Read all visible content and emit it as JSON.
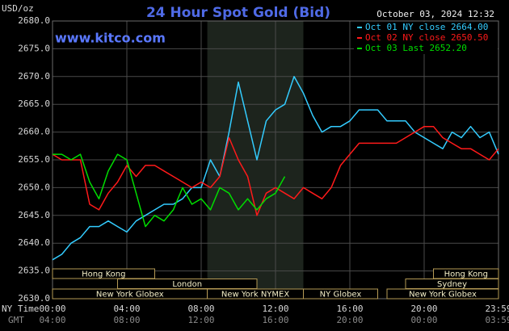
{
  "chart_data": {
    "type": "line",
    "unit_label": "USD/oz",
    "title": "24 Hour Spot Gold (Bid)",
    "timestamp": "October 03, 2024 12:32",
    "watermark": "www.kitco.com",
    "x_row_labels": [
      "NY Time",
      "GMT"
    ],
    "x": [
      0,
      0.5,
      1,
      1.5,
      2,
      2.5,
      3,
      3.5,
      4,
      4.5,
      5,
      5.5,
      6,
      6.5,
      7,
      7.5,
      8,
      8.5,
      9,
      9.5,
      10,
      10.5,
      11,
      11.5,
      12,
      12.5,
      13,
      13.5,
      14,
      14.5,
      15,
      15.5,
      16,
      16.5,
      17,
      17.5,
      18,
      18.5,
      19,
      19.5,
      20,
      20.5,
      21,
      21.5,
      22,
      22.5,
      23,
      23.5,
      24
    ],
    "xlim": [
      0,
      24
    ],
    "xticks": [
      {
        "value": 0,
        "label": "00:00"
      },
      {
        "value": 4,
        "label": "04:00"
      },
      {
        "value": 8,
        "label": "08:00"
      },
      {
        "value": 12,
        "label": "12:00"
      },
      {
        "value": 16,
        "label": "16:00"
      },
      {
        "value": 20,
        "label": "20:00"
      },
      {
        "value": 24,
        "label": "23:59"
      }
    ],
    "gmt_labels": [
      "04:00",
      "08:00",
      "12:00",
      "16:00",
      "20:00",
      "00:00",
      "03:59"
    ],
    "ylim": [
      2630,
      2680
    ],
    "yticks": [
      {
        "value": 2630,
        "label": "2630.0"
      },
      {
        "value": 2635,
        "label": "2635.0"
      },
      {
        "value": 2640,
        "label": "2640.0"
      },
      {
        "value": 2645,
        "label": "2645.0"
      },
      {
        "value": 2650,
        "label": "2650.0"
      },
      {
        "value": 2655,
        "label": "2655.0"
      },
      {
        "value": 2660,
        "label": "2660.0"
      },
      {
        "value": 2665,
        "label": "2665.0"
      },
      {
        "value": 2670,
        "label": "2670.0"
      },
      {
        "value": 2675,
        "label": "2675.0"
      },
      {
        "value": 2680,
        "label": "2680.0"
      }
    ],
    "grid": true,
    "shaded_range": [
      8.33,
      13.5
    ],
    "legend": "top-right",
    "series": [
      {
        "name": "Oct 01 NY close 2664.00",
        "color": "#33ccff",
        "values": [
          2637,
          2638,
          2640,
          2641,
          2643,
          2643,
          2644,
          2643,
          2642,
          2644,
          2645,
          2646,
          2647,
          2647,
          2648,
          2650,
          2650,
          2655,
          2652,
          2660,
          2669,
          2662,
          2655,
          2662,
          2664,
          2665,
          2670,
          2667,
          2663,
          2660,
          2661,
          2661,
          2662,
          2664,
          2664,
          2664,
          2662,
          2662,
          2662,
          2660,
          2659,
          2658,
          2657,
          2660,
          2659,
          2661,
          2659,
          2660,
          2656
        ]
      },
      {
        "name": "Oct 02 NY close 2650.50",
        "color": "#ff1a1a",
        "values": [
          2656,
          2655,
          2655,
          2655,
          2647,
          2646,
          2649,
          2651,
          2654,
          2652,
          2654,
          2654,
          2653,
          2652,
          2651,
          2650,
          2651,
          2650,
          2652,
          2659,
          2655,
          2652,
          2645,
          2649,
          2650,
          2649,
          2648,
          2650,
          2649,
          2648,
          2650,
          2654,
          2656,
          2658,
          2658,
          2658,
          2658,
          2658,
          2659,
          2660,
          2661,
          2661,
          2659,
          2658,
          2657,
          2657,
          2656,
          2655,
          2657
        ]
      },
      {
        "name": "Oct 03 Last 2652.20",
        "color": "#00dd00",
        "values": [
          2656,
          2656,
          2655,
          2656,
          2651,
          2648,
          2653,
          2656,
          2655,
          2649,
          2643,
          2645,
          2644,
          2646,
          2650,
          2647,
          2648,
          2646,
          2650,
          2649,
          2646,
          2648,
          2646,
          2648,
          2649,
          2652,
          null,
          null,
          null,
          null,
          null,
          null,
          null,
          null,
          null,
          null,
          null,
          null,
          null,
          null,
          null,
          null,
          null,
          null,
          null,
          null,
          null,
          null,
          null
        ]
      }
    ],
    "sessions": [
      {
        "label": "Hong Kong",
        "start": 0,
        "end": 5.5,
        "row": 0
      },
      {
        "label": "London",
        "start": 3.5,
        "end": 11,
        "row": 1
      },
      {
        "label": "New York Globex",
        "start": 0,
        "end": 8.33,
        "row": 2
      },
      {
        "label": "New York NYMEX",
        "start": 8.33,
        "end": 13.5,
        "row": 2
      },
      {
        "label": "NY Globex",
        "start": 13.5,
        "end": 17.5,
        "row": 2
      },
      {
        "label": "Hong Kong",
        "start": 20.5,
        "end": 24,
        "row": 0
      },
      {
        "label": "Sydney",
        "start": 19,
        "end": 24,
        "row": 1
      },
      {
        "label": "New York Globex",
        "start": 18,
        "end": 24,
        "row": 2
      }
    ]
  }
}
